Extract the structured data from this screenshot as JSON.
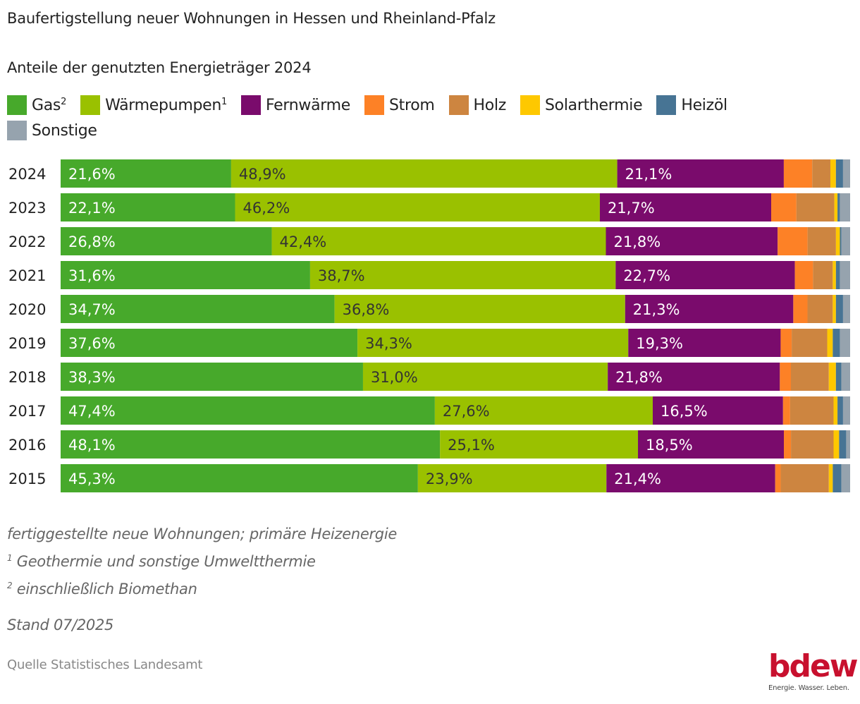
{
  "title": "Baufertigstellung neuer Wohnungen in Hessen und Rheinland-Pfalz",
  "subtitle": "Anteile der genutzten Energieträger 2024",
  "legend": [
    {
      "label": "Gas",
      "sup": "2",
      "color": "#47a92b"
    },
    {
      "label": "Wärmepumpen",
      "sup": "1",
      "color": "#9ac100"
    },
    {
      "label": "Fernwärme",
      "sup": "",
      "color": "#7a0b6c"
    },
    {
      "label": "Strom",
      "sup": "",
      "color": "#fd8126"
    },
    {
      "label": "Holz",
      "sup": "",
      "color": "#cd8540"
    },
    {
      "label": "Solarthermie",
      "sup": "",
      "color": "#fec800"
    },
    {
      "label": "Heizöl",
      "sup": "",
      "color": "#477494"
    },
    {
      "label": "Sonstige",
      "sup": "",
      "color": "#96a3ae"
    }
  ],
  "chart_data": {
    "type": "bar",
    "orientation": "horizontal",
    "stacked": true,
    "title": "Baufertigstellung neuer Wohnungen in Hessen und Rheinland-Pfalz",
    "subtitle": "Anteile der genutzten Energieträger 2024",
    "xlabel": "",
    "ylabel": "",
    "xlim": [
      0,
      100
    ],
    "unit": "%",
    "grid": false,
    "legend_position": "top",
    "categories": [
      "2024",
      "2023",
      "2022",
      "2021",
      "2020",
      "2019",
      "2018",
      "2017",
      "2016",
      "2015"
    ],
    "series": [
      {
        "name": "Gas²",
        "color": "#47a92b",
        "label_color": "#ffffff",
        "show_labels": true,
        "values": [
          21.6,
          22.1,
          26.8,
          31.6,
          34.7,
          37.6,
          38.3,
          47.4,
          48.1,
          45.3
        ],
        "labels": [
          "21,6%",
          "22,1%",
          "26,8%",
          "31,6%",
          "34,7%",
          "37,6%",
          "38,3%",
          "47,4%",
          "48,1%",
          "45,3%"
        ]
      },
      {
        "name": "Wärmepumpen¹",
        "color": "#9ac100",
        "label_color": "#333333",
        "show_labels": true,
        "values": [
          48.9,
          46.2,
          42.4,
          38.7,
          36.8,
          34.3,
          31.0,
          27.6,
          25.1,
          23.9
        ],
        "labels": [
          "48,9%",
          "46,2%",
          "42,4%",
          "38,7%",
          "36,8%",
          "34,3%",
          "31,0%",
          "27,6%",
          "25,1%",
          "23,9%"
        ]
      },
      {
        "name": "Fernwärme",
        "color": "#7a0b6c",
        "label_color": "#ffffff",
        "show_labels": true,
        "values": [
          21.1,
          21.7,
          21.8,
          22.7,
          21.3,
          19.3,
          21.8,
          16.5,
          18.5,
          21.4
        ],
        "labels": [
          "21,1%",
          "21,7%",
          "21,8%",
          "22,7%",
          "21,3%",
          "19,3%",
          "21,8%",
          "16,5%",
          "18,5%",
          "21,4%"
        ]
      },
      {
        "name": "Strom",
        "color": "#fd8126",
        "show_labels": false,
        "values": [
          3.6,
          3.2,
          3.8,
          2.3,
          1.8,
          1.4,
          1.4,
          0.9,
          0.9,
          0.7
        ]
      },
      {
        "name": "Holz",
        "color": "#cd8540",
        "show_labels": false,
        "values": [
          2.3,
          4.8,
          3.6,
          2.5,
          3.2,
          4.5,
          4.8,
          5.5,
          5.4,
          6.1
        ]
      },
      {
        "name": "Solarthermie",
        "color": "#fec800",
        "show_labels": false,
        "values": [
          0.7,
          0.4,
          0.5,
          0.4,
          0.4,
          0.7,
          0.9,
          0.5,
          0.7,
          0.5
        ]
      },
      {
        "name": "Heizöl",
        "color": "#477494",
        "show_labels": false,
        "values": [
          0.9,
          0.3,
          0.2,
          0.5,
          0.9,
          0.9,
          0.7,
          0.7,
          0.9,
          1.1
        ]
      },
      {
        "name": "Sonstige",
        "color": "#96a3ae",
        "show_labels": false,
        "values": [
          0.9,
          1.3,
          1.1,
          1.3,
          0.9,
          1.3,
          1.1,
          0.9,
          0.5,
          1.1
        ]
      }
    ]
  },
  "notes": {
    "line1": "fertiggestellte neue Wohnungen; primäre Heizenergie",
    "line2_sup": "1",
    "line2": " Geothermie und sonstige Umweltthermie",
    "line3_sup": "2",
    "line3": " einschließlich Biomethan"
  },
  "stand": "Stand 07/2025",
  "source": "Quelle Statistisches Landesamt",
  "logo": {
    "word": "bdew",
    "tagline": "Energie. Wasser. Leben.",
    "color": "#c8102e"
  }
}
